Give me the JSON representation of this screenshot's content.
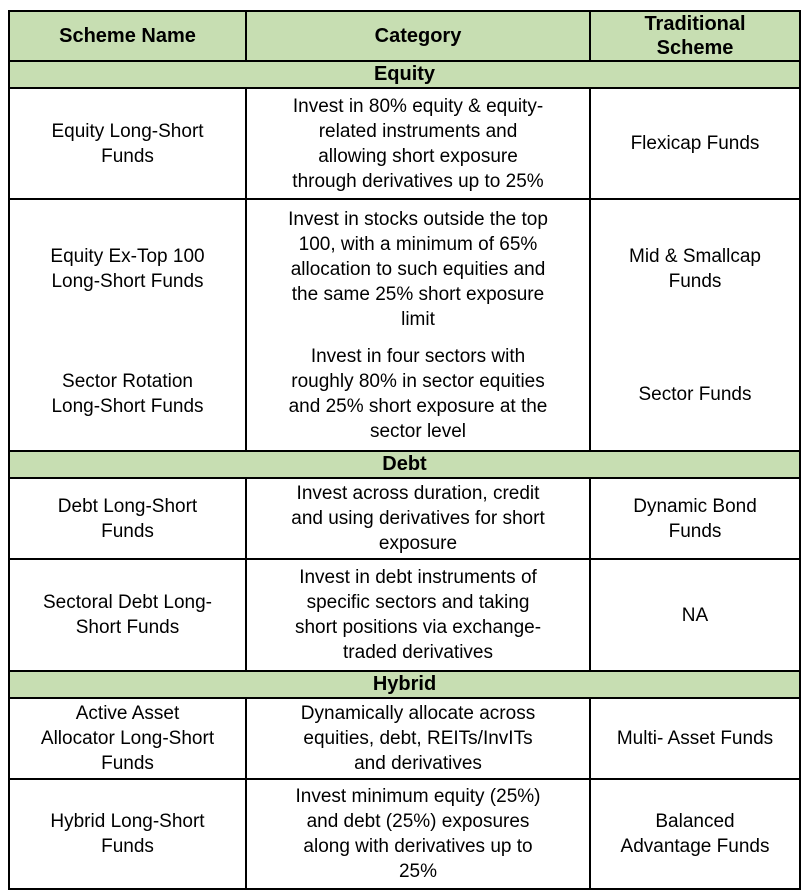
{
  "colors": {
    "header_bg": "#c7deb2",
    "border": "#000000",
    "text": "#000000",
    "page_bg": "#ffffff"
  },
  "table": {
    "headers": {
      "scheme": "Scheme Name",
      "category": "Category",
      "traditional": "Traditional\nScheme"
    },
    "sections": [
      {
        "title": "Equity",
        "rows": [
          {
            "scheme": "Equity Long-Short\nFunds",
            "category": "Invest in 80% equity & equity-\nrelated instruments and\nallowing short exposure\nthrough derivatives up to 25%",
            "traditional": "Flexicap Funds"
          },
          {
            "scheme": "Equity Ex-Top 100\nLong-Short Funds",
            "category": "Invest in stocks outside the top\n100, with a minimum of 65%\nallocation to such equities and\nthe same 25% short exposure\nlimit",
            "traditional": "Mid & Smallcap\nFunds"
          },
          {
            "scheme": "Sector Rotation\nLong-Short Funds",
            "category": "Invest in four sectors with\nroughly 80% in sector equities\nand 25% short exposure at the\nsector level",
            "traditional": "Sector Funds"
          }
        ]
      },
      {
        "title": "Debt",
        "rows": [
          {
            "scheme": "Debt Long-Short\nFunds",
            "category": "Invest across duration, credit\nand using derivatives for short\nexposure",
            "traditional": "Dynamic Bond\nFunds"
          },
          {
            "scheme": "Sectoral Debt Long-\nShort Funds",
            "category": "Invest in debt instruments of\nspecific sectors and taking\nshort positions via exchange-\ntraded derivatives",
            "traditional": "NA"
          }
        ]
      },
      {
        "title": "Hybrid",
        "rows": [
          {
            "scheme": "Active Asset\nAllocator Long-Short\nFunds",
            "category": "Dynamically allocate across\nequities, debt, REITs/InvITs\nand derivatives",
            "traditional": "Multi- Asset Funds"
          },
          {
            "scheme": "Hybrid Long-Short\nFunds",
            "category": "Invest minimum equity (25%)\nand debt (25%) exposures\nalong with derivatives up to\n25%",
            "traditional": "Balanced\nAdvantage Funds"
          }
        ]
      }
    ]
  }
}
